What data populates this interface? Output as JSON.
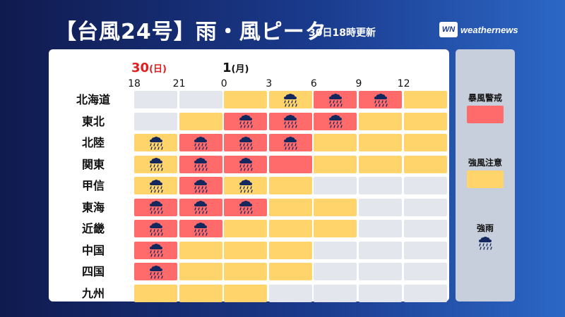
{
  "header": {
    "title": "【台風24号】雨・風ピーク",
    "subtitle": "30日18時更新",
    "logo_mark": "WN",
    "logo_text": "weathernews"
  },
  "days": [
    {
      "day": "30",
      "weekday": "(日)"
    },
    {
      "day": "1",
      "weekday": "(月)"
    }
  ],
  "hours": [
    "18",
    "21",
    "0",
    "3",
    "6",
    "9",
    "12"
  ],
  "colors": {
    "storm": "#ff6b6b",
    "gale": "#ffd46a",
    "none": "#e3e6ec",
    "rain_cloud": "#15285e",
    "rain_drops": "#15285e"
  },
  "legend": {
    "storm_warning": "暴風警戒",
    "gale_advisory": "強風注意",
    "heavy_rain": "強雨"
  },
  "rows": [
    {
      "region": "北海道",
      "cells": [
        [
          "none",
          false
        ],
        [
          "none",
          false
        ],
        [
          "gale",
          false
        ],
        [
          "gale",
          true
        ],
        [
          "storm",
          true
        ],
        [
          "storm",
          true
        ],
        [
          "gale",
          false
        ]
      ]
    },
    {
      "region": "東北",
      "cells": [
        [
          "none",
          false
        ],
        [
          "gale",
          false
        ],
        [
          "storm",
          true
        ],
        [
          "storm",
          true
        ],
        [
          "storm",
          true
        ],
        [
          "gale",
          false
        ],
        [
          "gale",
          false
        ]
      ]
    },
    {
      "region": "北陸",
      "cells": [
        [
          "gale",
          true
        ],
        [
          "storm",
          true
        ],
        [
          "storm",
          true
        ],
        [
          "storm",
          true
        ],
        [
          "gale",
          false
        ],
        [
          "gale",
          false
        ],
        [
          "gale",
          false
        ]
      ]
    },
    {
      "region": "関東",
      "cells": [
        [
          "gale",
          true
        ],
        [
          "storm",
          true
        ],
        [
          "storm",
          true
        ],
        [
          "storm",
          false
        ],
        [
          "gale",
          false
        ],
        [
          "gale",
          false
        ],
        [
          "gale",
          false
        ]
      ]
    },
    {
      "region": "甲信",
      "cells": [
        [
          "gale",
          true
        ],
        [
          "storm",
          true
        ],
        [
          "gale",
          true
        ],
        [
          "gale",
          false
        ],
        [
          "none",
          false
        ],
        [
          "none",
          false
        ],
        [
          "none",
          false
        ]
      ]
    },
    {
      "region": "東海",
      "cells": [
        [
          "storm",
          true
        ],
        [
          "storm",
          true
        ],
        [
          "storm",
          true
        ],
        [
          "gale",
          false
        ],
        [
          "gale",
          false
        ],
        [
          "none",
          false
        ],
        [
          "none",
          false
        ]
      ]
    },
    {
      "region": "近畿",
      "cells": [
        [
          "storm",
          true
        ],
        [
          "storm",
          true
        ],
        [
          "gale",
          false
        ],
        [
          "gale",
          false
        ],
        [
          "gale",
          false
        ],
        [
          "none",
          false
        ],
        [
          "none",
          false
        ]
      ]
    },
    {
      "region": "中国",
      "cells": [
        [
          "storm",
          true
        ],
        [
          "gale",
          false
        ],
        [
          "gale",
          false
        ],
        [
          "gale",
          false
        ],
        [
          "none",
          false
        ],
        [
          "none",
          false
        ],
        [
          "none",
          false
        ]
      ]
    },
    {
      "region": "四国",
      "cells": [
        [
          "storm",
          true
        ],
        [
          "gale",
          false
        ],
        [
          "gale",
          false
        ],
        [
          "gale",
          false
        ],
        [
          "none",
          false
        ],
        [
          "none",
          false
        ],
        [
          "none",
          false
        ]
      ]
    },
    {
      "region": "九州",
      "cells": [
        [
          "gale",
          false
        ],
        [
          "gale",
          false
        ],
        [
          "gale",
          false
        ],
        [
          "none",
          false
        ],
        [
          "none",
          false
        ],
        [
          "none",
          false
        ],
        [
          "none",
          false
        ]
      ]
    }
  ]
}
